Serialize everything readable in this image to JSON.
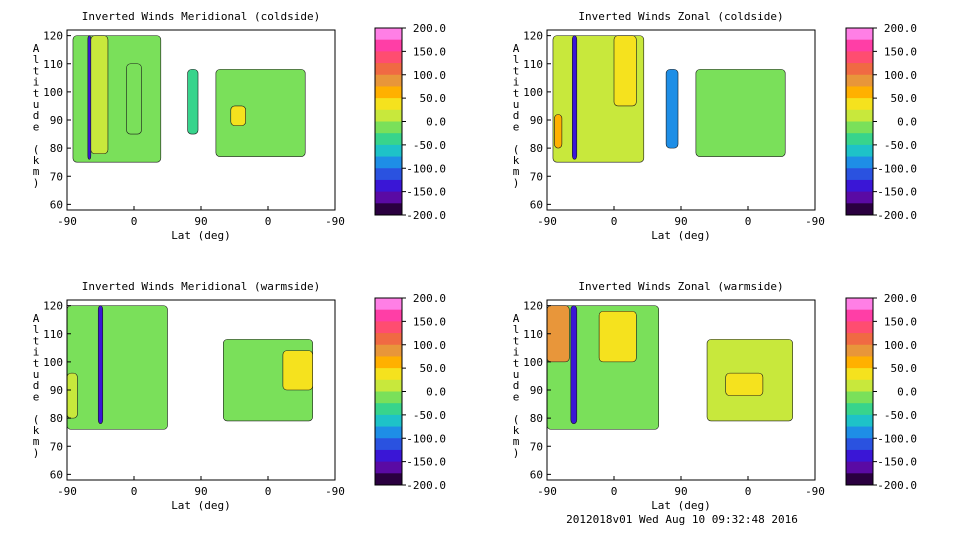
{
  "footer": "2012018v01 Wed Aug 10 09:32:48 2016",
  "colorbar": {
    "ticks": [
      "200.0",
      "150.0",
      "100.0",
      "50.0",
      "0.0",
      "-50.0",
      "-100.0",
      "-150.0",
      "-200.0"
    ],
    "colors": [
      "#ff7fe6",
      "#ff3ea6",
      "#ff4d70",
      "#f06a43",
      "#e8963a",
      "#ffb000",
      "#f5e21e",
      "#c8e83c",
      "#7ae05a",
      "#38d48c",
      "#1ec2c8",
      "#1e8ee6",
      "#2a52e0",
      "#3a16d6",
      "#5a0aa4",
      "#2a0040"
    ]
  },
  "chart_data": [
    {
      "type": "heatmap",
      "title": "Inverted Winds Meridional (coldside)",
      "xlabel": "Lat (deg)",
      "ylabel": "Altitude (km)",
      "xticks": [
        "-90",
        "0",
        "90",
        "0",
        "-90"
      ],
      "yticks": [
        "60",
        "70",
        "80",
        "90",
        "100",
        "110",
        "120"
      ],
      "ylim": [
        58,
        122
      ],
      "colorbar_range": [
        -200,
        200
      ],
      "regions": [
        {
          "x": [
            -82,
            36
          ],
          "y": [
            75,
            120
          ],
          "value": 0
        },
        {
          "x": [
            -62,
            -58
          ],
          "y": [
            76,
            120
          ],
          "value": -150
        },
        {
          "x": [
            -58,
            -35
          ],
          "y": [
            78,
            120
          ],
          "value": 20
        },
        {
          "x": [
            -10,
            10
          ],
          "y": [
            85,
            110
          ],
          "value": -20
        },
        {
          "x": [
            72,
            86
          ],
          "y": [
            85,
            108
          ],
          "value": -50
        },
        {
          "x": [
            110,
            230
          ],
          "y": [
            77,
            108
          ],
          "value": 0
        },
        {
          "x": [
            130,
            150
          ],
          "y": [
            88,
            95
          ],
          "value": 40
        }
      ]
    },
    {
      "type": "heatmap",
      "title": "Inverted Winds Zonal (coldside)",
      "xlabel": "Lat (deg)",
      "ylabel": "Altitude (km)",
      "xticks": [
        "-90",
        "0",
        "90",
        "0",
        "-90"
      ],
      "yticks": [
        "60",
        "70",
        "80",
        "90",
        "100",
        "110",
        "120"
      ],
      "ylim": [
        58,
        122
      ],
      "colorbar_range": [
        -200,
        200
      ],
      "regions": [
        {
          "x": [
            -82,
            40
          ],
          "y": [
            75,
            120
          ],
          "value": 10
        },
        {
          "x": [
            -56,
            -50
          ],
          "y": [
            76,
            120
          ],
          "value": -150
        },
        {
          "x": [
            -80,
            -70
          ],
          "y": [
            80,
            92
          ],
          "value": 60
        },
        {
          "x": [
            0,
            30
          ],
          "y": [
            95,
            120
          ],
          "value": 50
        },
        {
          "x": [
            70,
            86
          ],
          "y": [
            80,
            108
          ],
          "value": -80
        },
        {
          "x": [
            110,
            230
          ],
          "y": [
            77,
            108
          ],
          "value": 0
        }
      ]
    },
    {
      "type": "heatmap",
      "title": "Inverted Winds Meridional (warmside)",
      "xlabel": "Lat (deg)",
      "ylabel": "Altitude (km)",
      "xticks": [
        "-90",
        "0",
        "90",
        "0",
        "-90"
      ],
      "yticks": [
        "60",
        "70",
        "80",
        "90",
        "100",
        "110",
        "120"
      ],
      "ylim": [
        58,
        122
      ],
      "colorbar_range": [
        -200,
        200
      ],
      "regions": [
        {
          "x": [
            -90,
            45
          ],
          "y": [
            76,
            120
          ],
          "value": -20
        },
        {
          "x": [
            -48,
            -42
          ],
          "y": [
            78,
            120
          ],
          "value": -150
        },
        {
          "x": [
            -90,
            -76
          ],
          "y": [
            80,
            96
          ],
          "value": 20
        },
        {
          "x": [
            120,
            240
          ],
          "y": [
            79,
            108
          ],
          "value": -20
        },
        {
          "x": [
            200,
            240
          ],
          "y": [
            90,
            104
          ],
          "value": 30
        }
      ]
    },
    {
      "type": "heatmap",
      "title": "Inverted Winds Zonal (warmside)",
      "xlabel": "Lat (deg)",
      "ylabel": "Altitude (km)",
      "xticks": [
        "-90",
        "0",
        "90",
        "0",
        "-90"
      ],
      "yticks": [
        "60",
        "70",
        "80",
        "90",
        "100",
        "110",
        "120"
      ],
      "ylim": [
        58,
        122
      ],
      "colorbar_range": [
        -200,
        200
      ],
      "regions": [
        {
          "x": [
            -90,
            60
          ],
          "y": [
            76,
            120
          ],
          "value": 0
        },
        {
          "x": [
            -58,
            -50
          ],
          "y": [
            78,
            120
          ],
          "value": -150
        },
        {
          "x": [
            -90,
            -60
          ],
          "y": [
            100,
            120
          ],
          "value": 90
        },
        {
          "x": [
            -20,
            30
          ],
          "y": [
            100,
            118
          ],
          "value": 50
        },
        {
          "x": [
            125,
            240
          ],
          "y": [
            79,
            108
          ],
          "value": 10
        },
        {
          "x": [
            150,
            200
          ],
          "y": [
            88,
            96
          ],
          "value": 50
        }
      ]
    }
  ]
}
